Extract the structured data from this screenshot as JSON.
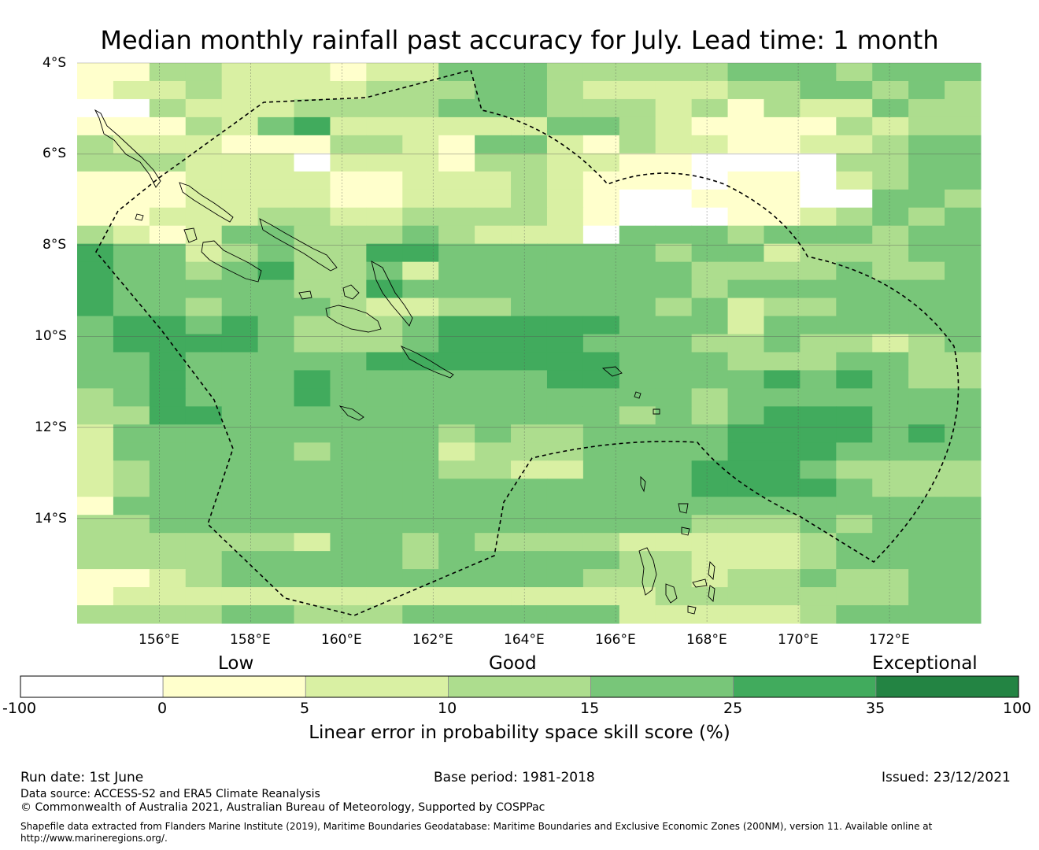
{
  "title": "Median monthly rainfall past accuracy for July. Lead time: 1 month",
  "map": {
    "lon_range": [
      154.2,
      174.0
    ],
    "lat_range": [
      -16.3,
      -4.0
    ],
    "lat_ticks": [
      "4°S",
      "6°S",
      "8°S",
      "10°S",
      "12°S",
      "14°S"
    ],
    "lon_ticks": [
      "156°E",
      "158°E",
      "160°E",
      "162°E",
      "164°E",
      "166°E",
      "168°E",
      "170°E",
      "172°E"
    ],
    "grid_lines": true
  },
  "colorbar": {
    "category_labels": [
      "Low",
      "Good",
      "Exceptional"
    ],
    "tick_labels": [
      "-100",
      "0",
      "5",
      "10",
      "15",
      "25",
      "35",
      "100"
    ],
    "bins": [
      {
        "from": -100,
        "to": 0,
        "color": "#ffffff"
      },
      {
        "from": 0,
        "to": 5,
        "color": "#ffffcc"
      },
      {
        "from": 5,
        "to": 10,
        "color": "#d9f0a3"
      },
      {
        "from": 10,
        "to": 15,
        "color": "#addd8e"
      },
      {
        "from": 15,
        "to": 25,
        "color": "#78c679"
      },
      {
        "from": 25,
        "to": 35,
        "color": "#41ab5d"
      },
      {
        "from": 35,
        "to": 100,
        "color": "#238443"
      }
    ],
    "title": "Linear error in probability space skill score (%)"
  },
  "skill_grid_legend": "0=white(<0) 1=0-5 2=5-10 3=10-15 4=15-25 5=25-35 6=>35",
  "skill_grid": [
    "1133222122444333334443444",
    "1223222233344322223344343",
    "0032223333444333231322433",
    "1113245222222443211113233",
    "3222111332144213221122344",
    "3332220222133221100003344",
    "1112222112223211101102344",
    "1112222112223210011100443",
    "1122233223333210001123434",
    "3212443334322204443444344",
    "5442343355444444344233344",
    "5443453342444444433334334",
    "5444443354444444434444444",
    "5443444322334444342334444",
    "4554543334555554442444444",
    "4555543334555544433433234",
    "4454444455555554443334433",
    "4454445444444554444545433",
    "3454445444444444434444444",
    "3355444444444443434555444",
    "2444444444343344445555454",
    "2444443444233344445554444",
    "2344444444332244455543333",
    "2344444444444444455554333",
    "1444444444444444444444444",
    "3344444444444444433343444",
    "3333332443433332222234444",
    "3333444443444443322234444",
    "1123444444444433323343344",
    "1222222222222222333333344",
    "3333443334444442222234444"
  ],
  "footer": {
    "run_date": "Run date: 1st June",
    "base_period": "Base period: 1981-2018",
    "issued": "Issued: 23/12/2021",
    "data_source": "Data source: ACCESS-S2 and ERA5 Climate Reanalysis",
    "copyright": "© Commonwealth of Australia 2021, Australian Bureau of Meteorology, Supported by COSPPac",
    "shapefile_line1": "Shapefile data extracted from Flanders Marine Institute (2019), Maritime Boundaries Geodatabase: Maritime Boundaries and Exclusive Economic Zones (200NM), version 11. Available online at",
    "shapefile_line2": "http://www.marineregions.org/."
  }
}
